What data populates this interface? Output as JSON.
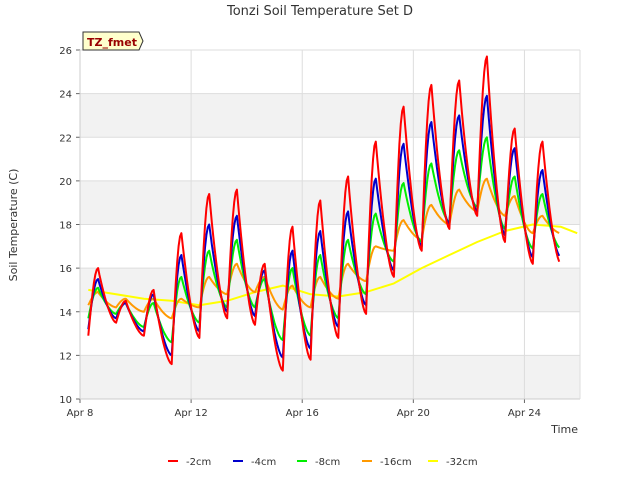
{
  "chart_data": {
    "type": "line",
    "title": "Tonzi Soil Temperature Set D",
    "xlabel": "Time",
    "ylabel": "Soil Temperature (C)",
    "badge": "TZ_fmet",
    "xlim": [
      0,
      18
    ],
    "ylim": [
      10,
      26
    ],
    "yticks": [
      10,
      12,
      14,
      16,
      18,
      20,
      22,
      24,
      26
    ],
    "xticks": [
      {
        "value": 0,
        "label": "Apr 8"
      },
      {
        "value": 4,
        "label": "Apr 12"
      },
      {
        "value": 8,
        "label": "Apr 16"
      },
      {
        "value": 12,
        "label": "Apr 20"
      },
      {
        "value": 16,
        "label": "Apr 24"
      }
    ],
    "series": [
      {
        "name": "-2cm",
        "color": "#ff0000",
        "lows": [
          12.9,
          13.5,
          12.9,
          11.6,
          12.8,
          13.7,
          13.4,
          11.3,
          11.8,
          12.8,
          13.9,
          15.6,
          16.8,
          17.8,
          18.4,
          17.2,
          16.2
        ],
        "highs": [
          16.0,
          14.5,
          15.0,
          17.6,
          19.4,
          19.6,
          16.2,
          17.9,
          19.1,
          20.2,
          21.8,
          23.4,
          24.4,
          24.6,
          25.7,
          22.4,
          21.8
        ]
      },
      {
        "name": "-4cm",
        "color": "#0000cc",
        "lows": [
          13.2,
          13.7,
          13.1,
          12.0,
          13.1,
          14.0,
          13.8,
          11.9,
          12.3,
          13.3,
          14.3,
          15.9,
          17.0,
          18.0,
          18.6,
          17.5,
          16.5
        ],
        "highs": [
          15.5,
          14.4,
          14.8,
          16.6,
          18.0,
          18.4,
          15.9,
          16.8,
          17.7,
          18.6,
          20.1,
          21.7,
          22.7,
          23.0,
          23.9,
          21.5,
          20.5
        ]
      },
      {
        "name": "-8cm",
        "color": "#00ee00",
        "lows": [
          13.7,
          13.9,
          13.3,
          12.6,
          13.5,
          14.2,
          14.2,
          12.7,
          12.9,
          13.7,
          14.8,
          16.3,
          17.2,
          18.1,
          18.8,
          17.8,
          16.9
        ],
        "highs": [
          15.1,
          14.4,
          14.4,
          15.6,
          16.8,
          17.3,
          15.5,
          16.0,
          16.6,
          17.3,
          18.5,
          19.9,
          20.8,
          21.4,
          22.0,
          20.2,
          19.4
        ]
      },
      {
        "name": "-16cm",
        "color": "#ff9900",
        "lows": [
          14.3,
          14.2,
          14.0,
          13.7,
          14.2,
          14.8,
          14.9,
          14.1,
          14.2,
          14.6,
          15.4,
          16.8,
          17.3,
          18.0,
          18.6,
          18.4,
          17.6
        ],
        "highs": [
          14.9,
          14.6,
          14.6,
          14.6,
          15.6,
          16.2,
          15.6,
          15.2,
          15.6,
          16.2,
          17.0,
          18.2,
          18.9,
          19.6,
          20.1,
          19.3,
          18.4
        ]
      },
      {
        "name": "-32cm",
        "color": "#ffff00",
        "x": [
          0,
          1,
          2,
          3,
          4,
          5,
          6,
          7,
          8,
          9,
          10,
          11,
          12,
          13,
          14,
          15,
          16,
          17,
          17.6
        ],
        "values": [
          15.0,
          14.8,
          14.6,
          14.5,
          14.3,
          14.5,
          14.9,
          15.2,
          14.8,
          14.7,
          14.9,
          15.3,
          16.0,
          16.6,
          17.2,
          17.7,
          18.0,
          17.9,
          17.6
        ]
      }
    ]
  }
}
